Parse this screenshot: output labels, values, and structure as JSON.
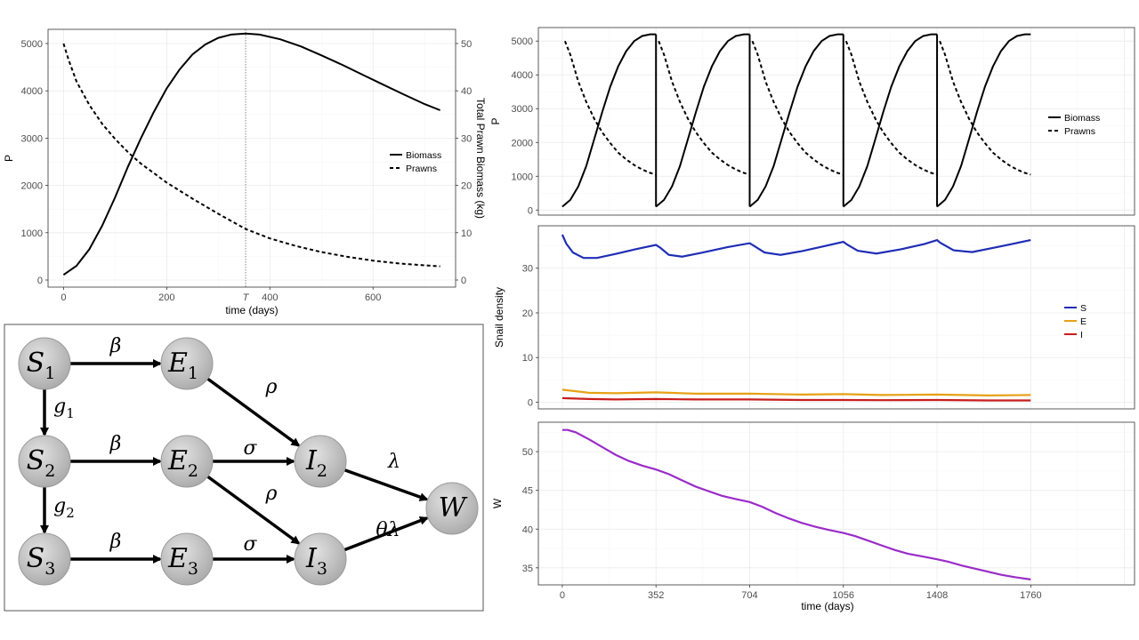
{
  "chart_data": [
    {
      "id": "top_left",
      "type": "line",
      "xlabel": "time (days)",
      "ylabel": "P",
      "y2label": "Total Prawn Biomass (kg)",
      "xlim": [
        -30,
        760
      ],
      "ylim": [
        -150,
        5300
      ],
      "y2lim": [
        -1.5,
        53
      ],
      "xticks": [
        0,
        200,
        400,
        600
      ],
      "yticks": [
        0,
        1000,
        2000,
        3000,
        4000,
        5000
      ],
      "y2ticks": [
        0,
        10,
        20,
        30,
        40,
        50
      ],
      "vline": {
        "x": 353,
        "label": "T"
      },
      "legend": [
        "Biomass",
        "Prawns"
      ],
      "legend_position": "right",
      "series": [
        {
          "name": "Biomass",
          "axis": "y2",
          "style": "solid",
          "x": [
            0,
            25,
            50,
            75,
            100,
            125,
            150,
            175,
            200,
            225,
            250,
            275,
            300,
            325,
            353,
            380,
            420,
            460,
            500,
            540,
            580,
            620,
            660,
            700,
            730
          ],
          "y": [
            1.1,
            3.0,
            6.5,
            11.5,
            17.5,
            24,
            30,
            35.5,
            40.5,
            44.5,
            47.7,
            49.8,
            51.2,
            51.9,
            52.1,
            51.9,
            50.9,
            49.4,
            47.5,
            45.5,
            43.4,
            41.3,
            39.2,
            37.2,
            35.9
          ]
        },
        {
          "name": "Prawns",
          "axis": "y",
          "style": "dashed",
          "x": [
            0,
            10,
            25,
            50,
            75,
            100,
            125,
            150,
            200,
            250,
            300,
            353,
            400,
            450,
            500,
            550,
            600,
            650,
            700,
            730
          ],
          "y": [
            5000,
            4650,
            4200,
            3700,
            3300,
            2980,
            2700,
            2460,
            2060,
            1720,
            1400,
            1080,
            880,
            720,
            590,
            490,
            410,
            350,
            310,
            290
          ]
        }
      ]
    },
    {
      "id": "right_top",
      "type": "line",
      "xlabel": "",
      "ylabel": "P",
      "xlim": [
        -90,
        2150
      ],
      "ylim": [
        -150,
        5400
      ],
      "yticks": [
        0,
        1000,
        2000,
        3000,
        4000,
        5000
      ],
      "legend": [
        "Biomass",
        "Prawns"
      ],
      "legend_position": "right",
      "cycles": [
        [
          0,
          352
        ],
        [
          352,
          704
        ],
        [
          704,
          1056
        ],
        [
          1056,
          1408
        ],
        [
          1408,
          1760
        ]
      ],
      "series": [
        {
          "name": "Biomass",
          "style": "solid",
          "t": [
            0,
            30,
            60,
            90,
            120,
            150,
            180,
            210,
            240,
            270,
            300,
            330,
            352
          ],
          "y": [
            100,
            300,
            700,
            1300,
            2100,
            2900,
            3650,
            4250,
            4700,
            5000,
            5150,
            5200,
            5200
          ]
        },
        {
          "name": "Prawns",
          "style": "dashed",
          "t": [
            30,
            60,
            90,
            120,
            150,
            180,
            210,
            240,
            270,
            300,
            330,
            352
          ],
          "y": [
            4600,
            3800,
            3200,
            2700,
            2300,
            1980,
            1700,
            1500,
            1330,
            1200,
            1100,
            1050
          ]
        }
      ]
    },
    {
      "id": "right_middle",
      "type": "line",
      "xlabel": "",
      "ylabel": "Snail density",
      "xlim": [
        -90,
        2150
      ],
      "ylim": [
        -1.5,
        39.5
      ],
      "yticks": [
        0,
        10,
        20,
        30
      ],
      "legend": [
        "S",
        "E",
        "I"
      ],
      "legend_position": "right",
      "series": [
        {
          "name": "S",
          "color": "#1f2db5",
          "x": [
            0,
            15,
            40,
            80,
            130,
            200,
            280,
            352,
            370,
            400,
            450,
            520,
            620,
            704,
            720,
            760,
            820,
            900,
            990,
            1056,
            1070,
            1110,
            1180,
            1270,
            1360,
            1408,
            1420,
            1470,
            1540,
            1640,
            1760
          ],
          "y": [
            37.5,
            35.5,
            33.5,
            32.3,
            32.3,
            33.2,
            34.3,
            35.2,
            34.5,
            33.0,
            32.6,
            33.4,
            34.7,
            35.6,
            35.0,
            33.5,
            33.0,
            33.8,
            35.0,
            35.9,
            35.3,
            33.9,
            33.3,
            34.2,
            35.4,
            36.3,
            35.7,
            34.0,
            33.6,
            34.8,
            36.3
          ]
        },
        {
          "name": "E",
          "color": "#e6a116",
          "x": [
            0,
            100,
            200,
            352,
            500,
            704,
            900,
            1056,
            1200,
            1408,
            1600,
            1760
          ],
          "y": [
            2.8,
            2.1,
            2.0,
            2.2,
            1.9,
            1.9,
            1.7,
            1.8,
            1.6,
            1.7,
            1.5,
            1.6
          ]
        },
        {
          "name": "I",
          "color": "#c81d1d",
          "x": [
            0,
            100,
            200,
            352,
            500,
            704,
            900,
            1056,
            1200,
            1408,
            1600,
            1760
          ],
          "y": [
            0.9,
            0.7,
            0.6,
            0.7,
            0.6,
            0.6,
            0.5,
            0.5,
            0.45,
            0.5,
            0.4,
            0.4
          ]
        }
      ]
    },
    {
      "id": "right_bottom",
      "type": "line",
      "xlabel": "time (days)",
      "ylabel": "W",
      "xlim": [
        -90,
        2150
      ],
      "ylim": [
        32.8,
        53.8
      ],
      "xticks": [
        0,
        352,
        704,
        1056,
        1408,
        1760
      ],
      "yticks": [
        35,
        40,
        45,
        50
      ],
      "series": [
        {
          "name": "W",
          "color": "#9a2cc8",
          "x": [
            0,
            20,
            50,
            100,
            150,
            200,
            250,
            300,
            352,
            400,
            450,
            500,
            550,
            600,
            650,
            704,
            750,
            800,
            850,
            900,
            950,
            1000,
            1056,
            1100,
            1150,
            1200,
            1250,
            1300,
            1350,
            1408,
            1450,
            1500,
            1550,
            1600,
            1650,
            1700,
            1760
          ],
          "y": [
            52.8,
            52.8,
            52.5,
            51.6,
            50.6,
            49.6,
            48.8,
            48.2,
            47.7,
            47.1,
            46.3,
            45.5,
            44.9,
            44.3,
            43.9,
            43.5,
            42.9,
            42.1,
            41.4,
            40.8,
            40.3,
            39.9,
            39.5,
            39.1,
            38.5,
            37.9,
            37.3,
            36.8,
            36.5,
            36.1,
            35.8,
            35.3,
            34.9,
            34.5,
            34.1,
            33.8,
            33.5
          ]
        }
      ]
    }
  ],
  "diagram": {
    "nodes": [
      {
        "id": "S1",
        "base": "S",
        "sub": "1"
      },
      {
        "id": "E1",
        "base": "E",
        "sub": "1"
      },
      {
        "id": "S2",
        "base": "S",
        "sub": "2"
      },
      {
        "id": "E2",
        "base": "E",
        "sub": "2"
      },
      {
        "id": "I2",
        "base": "I",
        "sub": "2"
      },
      {
        "id": "S3",
        "base": "S",
        "sub": "3"
      },
      {
        "id": "E3",
        "base": "E",
        "sub": "3"
      },
      {
        "id": "I3",
        "base": "I",
        "sub": "3"
      },
      {
        "id": "W",
        "base": "W",
        "sub": ""
      }
    ],
    "edges": [
      {
        "from": "S1",
        "to": "E1",
        "label": "β",
        "sub": ""
      },
      {
        "from": "S1",
        "to": "S2",
        "label": "g",
        "sub": "1"
      },
      {
        "from": "E1",
        "to": "I2",
        "label": "ρ",
        "sub": ""
      },
      {
        "from": "S2",
        "to": "E2",
        "label": "β",
        "sub": ""
      },
      {
        "from": "E2",
        "to": "I2",
        "label": "σ",
        "sub": ""
      },
      {
        "from": "E2",
        "to": "I3",
        "label": "ρ",
        "sub": ""
      },
      {
        "from": "S2",
        "to": "S3",
        "label": "g",
        "sub": "2"
      },
      {
        "from": "S3",
        "to": "E3",
        "label": "β",
        "sub": ""
      },
      {
        "from": "E3",
        "to": "I3",
        "label": "σ",
        "sub": ""
      },
      {
        "from": "I2",
        "to": "W",
        "label": "λ",
        "sub": ""
      },
      {
        "from": "I3",
        "to": "W",
        "label": "θλ",
        "sub": ""
      }
    ]
  }
}
